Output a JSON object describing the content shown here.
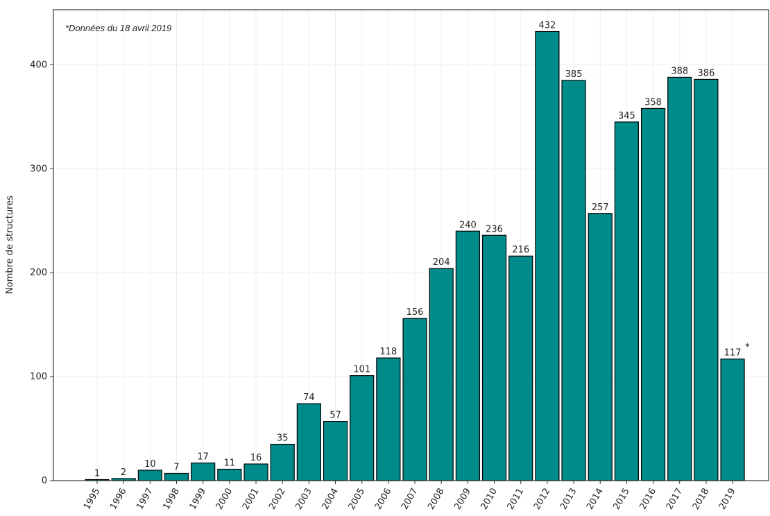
{
  "chart_data": {
    "type": "bar",
    "ylabel": "Nombre de structures",
    "annotations": [
      "*Données du 18 avril 2019",
      "*"
    ],
    "categories": [
      "1995",
      "1996",
      "1997",
      "1998",
      "1999",
      "2000",
      "2001",
      "2002",
      "2003",
      "2004",
      "2005",
      "2006",
      "2007",
      "2008",
      "2009",
      "2010",
      "2011",
      "2012",
      "2013",
      "2014",
      "2015",
      "2016",
      "2017",
      "2018",
      "2019"
    ],
    "values": [
      1,
      2,
      10,
      7,
      17,
      11,
      16,
      35,
      74,
      57,
      101,
      118,
      156,
      204,
      240,
      236,
      216,
      432,
      385,
      257,
      345,
      358,
      388,
      386,
      117
    ],
    "color": "#008b8b",
    "edgecolor": "#000000",
    "ylim": [
      0,
      453
    ],
    "yticks": [
      0,
      100,
      200,
      300,
      400
    ],
    "grid": true
  }
}
